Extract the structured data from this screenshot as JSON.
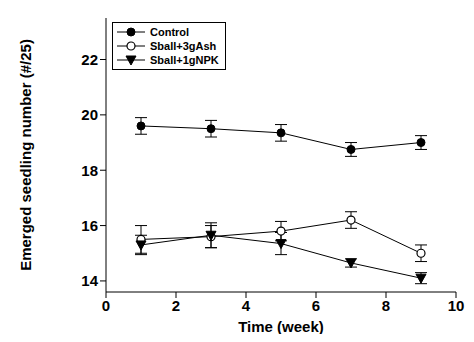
{
  "chart_data": {
    "type": "line",
    "x_label": "Time (week)",
    "y_label": "Emerged seedling number (#/25)",
    "x": [
      1,
      3,
      5,
      7,
      9
    ],
    "series": [
      {
        "name": "Control",
        "color": "#000000",
        "marker": "circle",
        "values": [
          19.6,
          19.5,
          19.35,
          18.75,
          19.0
        ],
        "error": [
          0.3,
          0.3,
          0.3,
          0.25,
          0.25
        ]
      },
      {
        "name": "Sball+3gAsh",
        "color": "#000000",
        "marker": "open_circle",
        "values": [
          15.5,
          15.6,
          15.8,
          16.2,
          15.0
        ],
        "error": [
          0.5,
          0.4,
          0.35,
          0.3,
          0.3
        ]
      },
      {
        "name": "Sball+1gNPK",
        "color": "#000000",
        "marker": "triangle_down",
        "values": [
          15.3,
          15.65,
          15.35,
          14.65,
          14.1
        ],
        "error": [
          0.35,
          0.45,
          0.4,
          0.15,
          0.2
        ]
      }
    ],
    "xlim": [
      0,
      10
    ],
    "xticks": [
      0,
      2,
      4,
      6,
      8,
      10
    ],
    "ylim": [
      13.6,
      23.5
    ],
    "yticks": [
      14,
      16,
      18,
      20,
      22
    ],
    "grid": false,
    "legend": "upper left"
  }
}
